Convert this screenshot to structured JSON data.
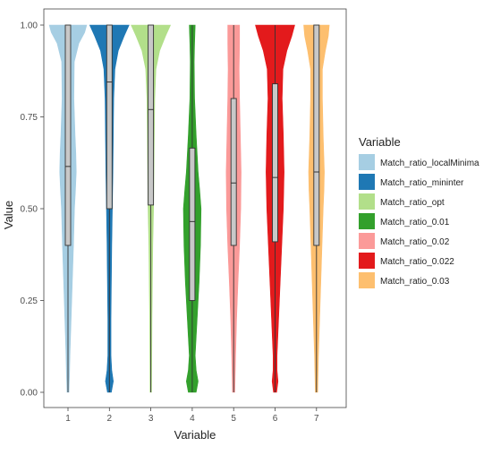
{
  "chart_data": {
    "type": "violin",
    "xlabel": "Variable",
    "ylabel": "Value",
    "categories": [
      "1",
      "2",
      "3",
      "4",
      "5",
      "6",
      "7"
    ],
    "yticks": [
      "0.00",
      "0.25",
      "0.50",
      "0.75",
      "1.00"
    ],
    "ylim": [
      0,
      1
    ],
    "grid": false,
    "legend_title": "Variable",
    "legend_position": "right",
    "series": [
      {
        "name": "Match_ratio_localMinima",
        "color": "#a6cee3",
        "box": {
          "q1": 0.4,
          "median": 0.615,
          "q3": 1.0,
          "min": 0.0,
          "max": 1.0
        },
        "density": [
          [
            0,
            0.05
          ],
          [
            0.05,
            0.08
          ],
          [
            0.1,
            0.1
          ],
          [
            0.2,
            0.16
          ],
          [
            0.3,
            0.22
          ],
          [
            0.4,
            0.28
          ],
          [
            0.5,
            0.33
          ],
          [
            0.55,
            0.38
          ],
          [
            0.6,
            0.42
          ],
          [
            0.65,
            0.4
          ],
          [
            0.7,
            0.36
          ],
          [
            0.8,
            0.3
          ],
          [
            0.9,
            0.32
          ],
          [
            0.95,
            0.55
          ],
          [
            0.98,
            0.85
          ],
          [
            1.0,
            0.95
          ]
        ]
      },
      {
        "name": "Match_ratio_mininter",
        "color": "#1f78b4",
        "box": {
          "q1": 0.5,
          "median": 0.845,
          "q3": 1.0,
          "min": 0.0,
          "max": 1.0
        },
        "density": [
          [
            0,
            0.1
          ],
          [
            0.03,
            0.2
          ],
          [
            0.06,
            0.12
          ],
          [
            0.1,
            0.08
          ],
          [
            0.2,
            0.08
          ],
          [
            0.3,
            0.1
          ],
          [
            0.4,
            0.12
          ],
          [
            0.5,
            0.15
          ],
          [
            0.6,
            0.18
          ],
          [
            0.7,
            0.2
          ],
          [
            0.8,
            0.22
          ],
          [
            0.88,
            0.28
          ],
          [
            0.93,
            0.45
          ],
          [
            0.97,
            0.75
          ],
          [
            1.0,
            1.0
          ]
        ]
      },
      {
        "name": "Match_ratio_opt",
        "color": "#b2df8a",
        "box": {
          "q1": 0.51,
          "median": 0.77,
          "q3": 1.0,
          "min": 0.0,
          "max": 1.0
        },
        "density": [
          [
            0,
            0.04
          ],
          [
            0.1,
            0.05
          ],
          [
            0.2,
            0.06
          ],
          [
            0.3,
            0.08
          ],
          [
            0.4,
            0.1
          ],
          [
            0.5,
            0.14
          ],
          [
            0.6,
            0.16
          ],
          [
            0.7,
            0.18
          ],
          [
            0.8,
            0.2
          ],
          [
            0.88,
            0.26
          ],
          [
            0.93,
            0.45
          ],
          [
            0.97,
            0.75
          ],
          [
            1.0,
            1.0
          ]
        ]
      },
      {
        "name": "Match_ratio_0.01",
        "color": "#33a02c",
        "box": {
          "q1": 0.25,
          "median": 0.465,
          "q3": 0.665,
          "min": 0.0,
          "max": 1.0
        },
        "density": [
          [
            0,
            0.2
          ],
          [
            0.03,
            0.3
          ],
          [
            0.06,
            0.2
          ],
          [
            0.1,
            0.15
          ],
          [
            0.2,
            0.25
          ],
          [
            0.3,
            0.35
          ],
          [
            0.4,
            0.42
          ],
          [
            0.5,
            0.45
          ],
          [
            0.55,
            0.38
          ],
          [
            0.6,
            0.3
          ],
          [
            0.7,
            0.2
          ],
          [
            0.8,
            0.12
          ],
          [
            0.9,
            0.1
          ],
          [
            0.95,
            0.12
          ],
          [
            1.0,
            0.15
          ]
        ]
      },
      {
        "name": "Match_ratio_0.02",
        "color": "#fb9a99",
        "box": {
          "q1": 0.4,
          "median": 0.57,
          "q3": 0.8,
          "min": 0.0,
          "max": 1.0
        },
        "density": [
          [
            0,
            0.06
          ],
          [
            0.1,
            0.1
          ],
          [
            0.2,
            0.15
          ],
          [
            0.3,
            0.22
          ],
          [
            0.4,
            0.3
          ],
          [
            0.5,
            0.36
          ],
          [
            0.6,
            0.38
          ],
          [
            0.7,
            0.34
          ],
          [
            0.8,
            0.3
          ],
          [
            0.88,
            0.28
          ],
          [
            0.95,
            0.3
          ],
          [
            1.0,
            0.3
          ]
        ]
      },
      {
        "name": "Match_ratio_0.022",
        "color": "#e31a1c",
        "box": {
          "q1": 0.41,
          "median": 0.585,
          "q3": 0.84,
          "min": 0.0,
          "max": 1.0
        },
        "density": [
          [
            0,
            0.08
          ],
          [
            0.03,
            0.15
          ],
          [
            0.06,
            0.1
          ],
          [
            0.1,
            0.1
          ],
          [
            0.2,
            0.18
          ],
          [
            0.3,
            0.26
          ],
          [
            0.4,
            0.34
          ],
          [
            0.5,
            0.42
          ],
          [
            0.6,
            0.46
          ],
          [
            0.7,
            0.42
          ],
          [
            0.8,
            0.36
          ],
          [
            0.88,
            0.4
          ],
          [
            0.93,
            0.6
          ],
          [
            0.97,
            0.85
          ],
          [
            1.0,
            1.0
          ]
        ]
      },
      {
        "name": "Match_ratio_0.03",
        "color": "#fdbf6f",
        "box": {
          "q1": 0.4,
          "median": 0.6,
          "q3": 1.0,
          "min": 0.0,
          "max": 1.0
        },
        "density": [
          [
            0,
            0.06
          ],
          [
            0.1,
            0.1
          ],
          [
            0.2,
            0.16
          ],
          [
            0.3,
            0.22
          ],
          [
            0.4,
            0.28
          ],
          [
            0.5,
            0.34
          ],
          [
            0.55,
            0.38
          ],
          [
            0.6,
            0.4
          ],
          [
            0.7,
            0.34
          ],
          [
            0.8,
            0.3
          ],
          [
            0.88,
            0.3
          ],
          [
            0.93,
            0.45
          ],
          [
            0.97,
            0.6
          ],
          [
            1.0,
            0.65
          ]
        ]
      }
    ]
  }
}
